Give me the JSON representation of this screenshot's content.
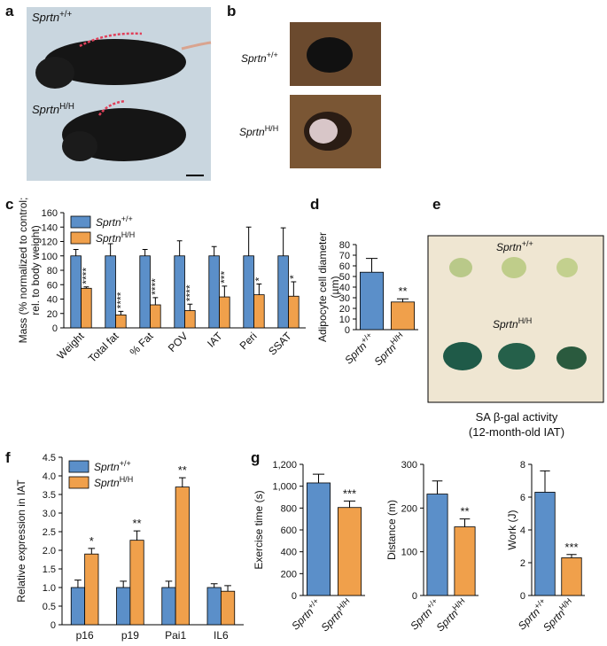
{
  "panels": {
    "a": "a",
    "b": "b",
    "c": "c",
    "d": "d",
    "e": "e",
    "f": "f",
    "g": "g"
  },
  "photos": {
    "a_top": "Sprtn+/+",
    "a_bottom": "SprtnH/H",
    "b_top": "Sprtn+/+",
    "b_bottom": "SprtnH/H",
    "e_top": "Sprtn+/+",
    "e_bottom": "SprtnH/H",
    "e_caption": [
      "SA β-gal activity",
      "(12-month-old IAT)"
    ]
  },
  "chart_data": [
    {
      "type": "bar",
      "ylabel": [
        "Mass (% normalized to control;",
        "rel. to body weight)"
      ],
      "categories": [
        "Weight",
        "Total fat",
        "% Fat",
        "POV",
        "IAT",
        "Peri",
        "SSAT"
      ],
      "series": [
        {
          "name": "Sprtn+/+",
          "color": "#5b8fc9",
          "values": [
            100,
            100,
            100,
            100,
            100,
            100,
            100
          ],
          "errors": [
            9,
            17,
            9,
            21,
            13,
            40,
            39
          ],
          "annotations": [
            null,
            null,
            null,
            null,
            null,
            null,
            null
          ]
        },
        {
          "name": "SprtnH/H",
          "color": "#f0a04b",
          "values": [
            55,
            18,
            32,
            24,
            43,
            46,
            44
          ],
          "errors": [
            2,
            5,
            10,
            9,
            15,
            15,
            20
          ],
          "annotations": [
            "****",
            "****",
            "****",
            "****",
            "***",
            "*",
            "*"
          ]
        }
      ],
      "annotation_rotated": true,
      "rotated_categories": true,
      "legend": "upper left",
      "ylim": [
        0,
        160
      ],
      "yticks": [
        0,
        20,
        40,
        60,
        80,
        100,
        120,
        140,
        160
      ]
    },
    {
      "type": "bar",
      "ylabel": [
        "Adipocyte cell diameter",
        "(µm)"
      ],
      "categories": [
        "Sprtn+/+",
        "SprtnH/H"
      ],
      "values": [
        54,
        26
      ],
      "errors": [
        13,
        3
      ],
      "colors": [
        "#5b8fc9",
        "#f0a04b"
      ],
      "annotations": [
        null,
        "**"
      ],
      "rotated_categories": true,
      "ylim": [
        0,
        80
      ],
      "yticks": [
        0,
        10,
        20,
        30,
        40,
        50,
        60,
        70,
        80
      ]
    },
    {
      "type": "bar",
      "ylabel": "Relative expression in IAT",
      "categories": [
        "p16",
        "p19",
        "Pai1",
        "IL6"
      ],
      "series": [
        {
          "name": "Sprtn+/+",
          "color": "#5b8fc9",
          "values": [
            1,
            1,
            1,
            1
          ],
          "errors": [
            0.2,
            0.17,
            0.17,
            0.1
          ],
          "annotations": [
            null,
            null,
            null,
            null
          ]
        },
        {
          "name": "SprtnH/H",
          "color": "#f0a04b",
          "values": [
            1.9,
            2.27,
            3.7,
            0.9
          ],
          "errors": [
            0.15,
            0.25,
            0.25,
            0.15
          ],
          "annotations": [
            "*",
            "**",
            "**",
            null
          ]
        }
      ],
      "annotation_rotated": false,
      "rotated_categories": false,
      "legend": "upper left",
      "ylim": [
        0,
        4.5
      ],
      "yticks": [
        0,
        0.5,
        {
          "value": 1,
          "label": "1.0"
        },
        1.5,
        {
          "value": 2,
          "label": "2.0"
        },
        2.5,
        {
          "value": 3,
          "label": "3.0"
        },
        3.5,
        {
          "value": 4,
          "label": "4.0"
        },
        4.5
      ]
    },
    {
      "type": "bar",
      "ylabel": "Exercise time (s)",
      "categories": [
        "Sprtn+/+",
        "SprtnH/H"
      ],
      "values": [
        1030,
        805
      ],
      "errors": [
        80,
        60
      ],
      "colors": [
        "#5b8fc9",
        "#f0a04b"
      ],
      "annotations": [
        null,
        "***"
      ],
      "rotated_categories": true,
      "ylim": [
        0,
        1200
      ],
      "yticks": [
        0,
        200,
        400,
        600,
        800,
        {
          "value": 1000,
          "label": "1,000"
        },
        {
          "value": 1200,
          "label": "1,200"
        }
      ]
    },
    {
      "type": "bar",
      "ylabel": "Distance (m)",
      "categories": [
        "Sprtn+/+",
        "SprtnH/H"
      ],
      "values": [
        232,
        157
      ],
      "errors": [
        30,
        18
      ],
      "colors": [
        "#5b8fc9",
        "#f0a04b"
      ],
      "annotations": [
        null,
        "**"
      ],
      "rotated_categories": true,
      "ylim": [
        0,
        300
      ],
      "yticks": [
        0,
        100,
        200,
        300
      ]
    },
    {
      "type": "bar",
      "ylabel": "Work (J)",
      "categories": [
        "Sprtn+/+",
        "SprtnH/H"
      ],
      "values": [
        6.3,
        2.3
      ],
      "errors": [
        1.3,
        0.2
      ],
      "colors": [
        "#5b8fc9",
        "#f0a04b"
      ],
      "annotations": [
        null,
        "***"
      ],
      "rotated_categories": true,
      "ylim": [
        0,
        8
      ],
      "yticks": [
        0,
        2,
        4,
        6,
        8
      ]
    }
  ]
}
